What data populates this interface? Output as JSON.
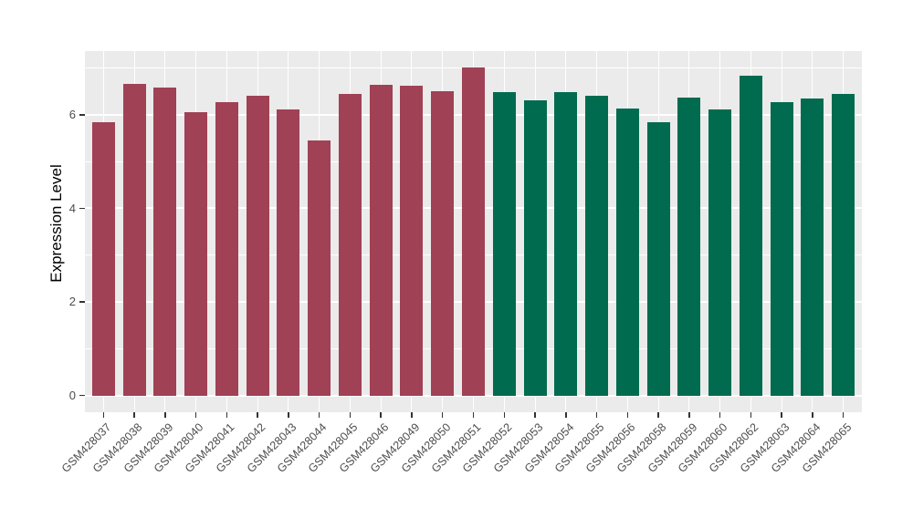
{
  "figure": {
    "background": "#FFFFFF",
    "panel_background": "#EBEBEB",
    "grid_color": "#FFFFFF",
    "tick_color": "#333333",
    "axis_text_color": "#4D4D4D",
    "axis_title_color": "#000000"
  },
  "chart_data": {
    "type": "bar",
    "title": "",
    "xlabel": "",
    "ylabel": "Expression Level",
    "ylim": [
      -0.36,
      7.36
    ],
    "y_ticks": [
      0,
      2,
      4,
      6
    ],
    "y_minor_ticks": [
      1,
      3,
      5,
      7
    ],
    "grid": true,
    "legend": "none",
    "categories": [
      "GSM428037",
      "GSM428038",
      "GSM428039",
      "GSM428040",
      "GSM428041",
      "GSM428042",
      "GSM428043",
      "GSM428044",
      "GSM428045",
      "GSM428046",
      "GSM428049",
      "GSM428050",
      "GSM428051",
      "GSM428052",
      "GSM428053",
      "GSM428054",
      "GSM428055",
      "GSM428056",
      "GSM428058",
      "GSM428059",
      "GSM428060",
      "GSM428062",
      "GSM428063",
      "GSM428064",
      "GSM428065"
    ],
    "values": [
      5.84,
      6.66,
      6.58,
      6.06,
      6.27,
      6.41,
      6.12,
      5.44,
      6.45,
      6.64,
      6.62,
      6.51,
      7.01,
      6.49,
      6.3,
      6.49,
      6.41,
      6.13,
      5.84,
      6.37,
      6.11,
      6.84,
      6.26,
      6.34,
      6.45
    ],
    "groups": [
      "group1",
      "group1",
      "group1",
      "group1",
      "group1",
      "group1",
      "group1",
      "group1",
      "group1",
      "group1",
      "group1",
      "group1",
      "group1",
      "group2",
      "group2",
      "group2",
      "group2",
      "group2",
      "group2",
      "group2",
      "group2",
      "group2",
      "group2",
      "group2",
      "group2"
    ],
    "group_colors": {
      "group1": "#A04155",
      "group2": "#016B4F"
    }
  }
}
